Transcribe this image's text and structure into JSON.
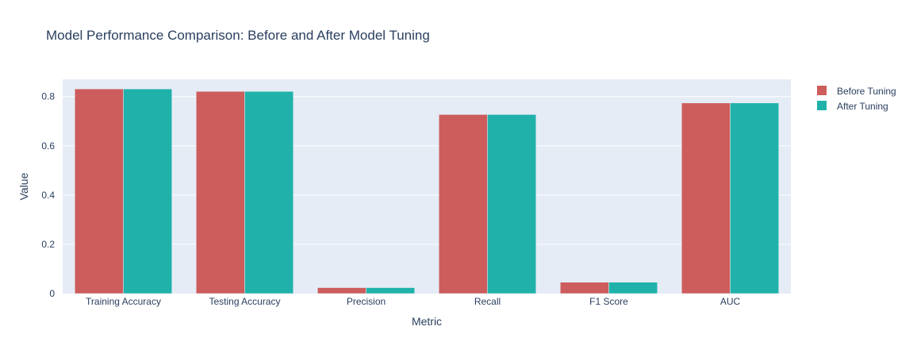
{
  "chart_data": {
    "type": "bar",
    "title": "Model Performance Comparison: Before and After Model Tuning",
    "xlabel": "Metric",
    "ylabel": "Value",
    "categories": [
      "Training Accuracy",
      "Testing Accuracy",
      "Precision",
      "Recall",
      "F1 Score",
      "AUC"
    ],
    "series": [
      {
        "name": "Before Tuning",
        "color": "#CD5C5C",
        "values": [
          0.831,
          0.821,
          0.024,
          0.727,
          0.046,
          0.774
        ]
      },
      {
        "name": "After Tuning",
        "color": "#20B2AA",
        "values": [
          0.831,
          0.821,
          0.024,
          0.727,
          0.046,
          0.774
        ]
      }
    ],
    "ylim": [
      0,
      0.87
    ],
    "yticks": [
      0,
      0.2,
      0.4,
      0.6,
      0.8
    ],
    "ytick_labels": [
      "0",
      "0.2",
      "0.4",
      "0.6",
      "0.8"
    ],
    "grid": true,
    "legend_position": "top-right",
    "plot_background": "#E5ECF6"
  }
}
